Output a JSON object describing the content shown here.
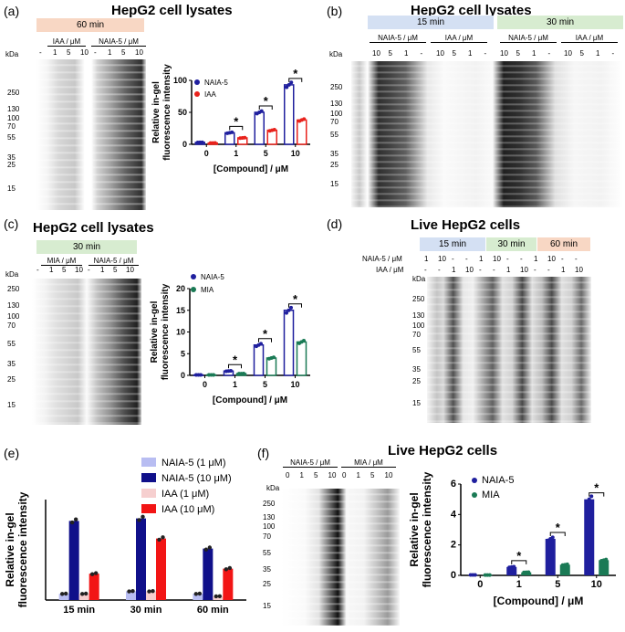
{
  "panels": {
    "a": {
      "label": "(a)",
      "title": "HepG2 cell lysates",
      "time_band": "60 min",
      "group1": "IAA / μM",
      "group2": "NAIA-5 / μM",
      "lanes": [
        "-",
        "1",
        "5",
        "10",
        "-",
        "1",
        "5",
        "10"
      ],
      "kda": "kDa",
      "markers": [
        "250",
        "130",
        "100",
        "70",
        "55",
        "35",
        "25",
        "15"
      ]
    },
    "b": {
      "label": "(b)",
      "title": "HepG2 cell lysates",
      "band1": "15 min",
      "band2": "30 min",
      "group1": "NAIA-5 / μM",
      "group2": "IAA / μM",
      "group3": "NAIA-5 / μM",
      "group4": "IAA / μM",
      "lanes": [
        "10",
        "5",
        "1",
        "-",
        "10",
        "5",
        "1",
        "-",
        "10",
        "5",
        "1",
        "-",
        "10",
        "5",
        "1",
        "-"
      ],
      "kda": "kDa",
      "markers": [
        "250",
        "130",
        "100",
        "70",
        "55",
        "35",
        "25",
        "15"
      ]
    },
    "c": {
      "label": "(c)",
      "title": "HepG2 cell lysates",
      "time_band": "30 min",
      "group1": "MIA / μM",
      "group2": "NAIA-5 / μM",
      "lanes": [
        "-",
        "1",
        "5",
        "10",
        "-",
        "1",
        "5",
        "10"
      ],
      "kda": "kDa",
      "markers": [
        "250",
        "130",
        "100",
        "70",
        "55",
        "35",
        "25",
        "15"
      ]
    },
    "d": {
      "label": "(d)",
      "title": "Live HepG2 cells",
      "band1": "15 min",
      "band2": "30 min",
      "band3": "60 min",
      "row1_label": "NAIA-5 / μM",
      "row2_label": "IAA / μM",
      "row1": [
        "1",
        "10",
        "-",
        "-",
        "1",
        "10",
        "-",
        "-",
        "1",
        "10",
        "-",
        "-"
      ],
      "row2": [
        "-",
        "-",
        "1",
        "10",
        "-",
        "-",
        "1",
        "10",
        "-",
        "-",
        "1",
        "10"
      ],
      "kda": "kDa",
      "markers": [
        "250",
        "130",
        "100",
        "70",
        "55",
        "35",
        "25",
        "15"
      ]
    },
    "e": {
      "label": "(e)"
    },
    "f": {
      "label": "(f)",
      "title": "Live HepG2 cells",
      "group1": "NAIA-5 / μM",
      "group2": "MIA / μM",
      "lanes": [
        "0",
        "1",
        "5",
        "10",
        "0",
        "1",
        "5",
        "10"
      ],
      "kda": "kDa",
      "markers": [
        "250",
        "130",
        "100",
        "70",
        "55",
        "35",
        "25",
        "15"
      ]
    }
  },
  "colors": {
    "naia": "#1f1f9e",
    "iaa": "#e8221c",
    "mia": "#1a7a55",
    "naia1": "#b8bdf2",
    "naia10": "#10108a",
    "iaa1": "#f6cfcf",
    "iaa10": "#f21515",
    "band15": "#d4e0f3",
    "band30": "#d7ecd0",
    "band60": "#f8d7c4"
  },
  "chart_data": [
    {
      "id": "a",
      "type": "bar",
      "categories": [
        "0",
        "1",
        "5",
        "10"
      ],
      "series": [
        {
          "name": "NAIA-5",
          "values": [
            3,
            18,
            50,
            93
          ]
        },
        {
          "name": "IAA",
          "values": [
            2,
            10,
            22,
            38
          ]
        }
      ],
      "xlabel": "[Compound]  / μM",
      "ylabel": "Relative in-gel fluorescence intensity",
      "ylim": [
        0,
        100
      ],
      "yticks": [
        "0",
        "50",
        "100"
      ],
      "legend": "top-left",
      "significance": [
        "*",
        "*",
        "*"
      ]
    },
    {
      "id": "c",
      "type": "bar",
      "categories": [
        "0",
        "1",
        "5",
        "10"
      ],
      "series": [
        {
          "name": "NAIA-5",
          "values": [
            0.1,
            1,
            7,
            15
          ]
        },
        {
          "name": "MIA",
          "values": [
            0.1,
            0.4,
            4,
            7.7
          ]
        }
      ],
      "xlabel": "[Compound] / μM",
      "ylabel": "Relative in-gel fluorescence intensity",
      "ylim": [
        0,
        20
      ],
      "yticks": [
        "0",
        "5",
        "10",
        "15",
        "20"
      ],
      "legend": "top-left",
      "significance": [
        "*",
        "*",
        "*"
      ]
    },
    {
      "id": "e",
      "type": "bar",
      "categories": [
        "15 min",
        "30 min",
        "60 min"
      ],
      "series": [
        {
          "name": "NAIA-5 (1 μM)",
          "values": [
            5,
            7,
            5
          ]
        },
        {
          "name": "NAIA-5 (10 μM)",
          "values": [
            63,
            65,
            41
          ]
        },
        {
          "name": "IAA (1 μM)",
          "values": [
            5,
            7,
            3
          ]
        },
        {
          "name": "IAA (10 μM)",
          "values": [
            21,
            49,
            25
          ]
        }
      ],
      "ylabel": "Relative in-gel fluorescence intensity",
      "ylim": [
        0,
        80
      ],
      "legend": "top-right"
    },
    {
      "id": "f",
      "type": "bar",
      "categories": [
        "0",
        "1",
        "5",
        "10"
      ],
      "series": [
        {
          "name": "NAIA-5",
          "values": [
            0.03,
            0.55,
            2.4,
            5.0
          ]
        },
        {
          "name": "MIA",
          "values": [
            0.02,
            0.2,
            0.7,
            1.0
          ]
        }
      ],
      "xlabel": "[Compound]  / μM",
      "ylabel": "Relative in-gel fluorescence intensity",
      "ylim": [
        0,
        6
      ],
      "yticks": [
        "0",
        "2",
        "4",
        "6"
      ],
      "legend": "top-left",
      "significance": [
        "*",
        "*",
        "*"
      ]
    }
  ]
}
